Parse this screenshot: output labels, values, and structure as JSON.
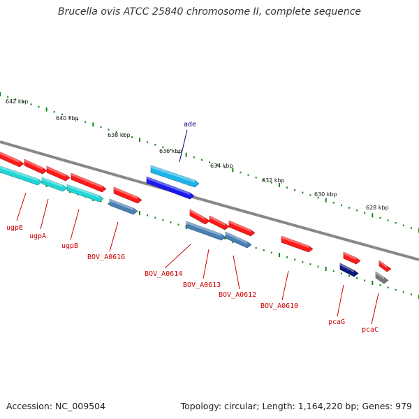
{
  "title": "Brucella ovis ATCC 25840 chromosome II, complete sequence",
  "footer": {
    "accession": "Accession: NC_009504",
    "topology": "Topology: circular; Length: 1,164,220 bp; Genes: 979"
  },
  "colors": {
    "backbone": "#888888",
    "tick": "#118811",
    "gene_red": "#ff1a1a",
    "gene_cyan": "#22d4d4",
    "gene_lightblue": "#1eb4e8",
    "gene_blue": "#1a1aee",
    "gene_steel": "#4a7fb5",
    "gene_navy": "#0a1a7a",
    "gene_gray": "#777777",
    "label_red": "#cc0000",
    "label_blue": "#000088"
  },
  "scale_ticks": [
    "642 kbp",
    "640 kbp",
    "638 kbp",
    "636 kbp",
    "634 kbp",
    "632 kbp",
    "630 kbp",
    "628 kbp"
  ],
  "gene_labels": [
    {
      "text": "ugpE",
      "color": "label_red"
    },
    {
      "text": "ugpA",
      "color": "label_red"
    },
    {
      "text": "ugpB",
      "color": "label_red"
    },
    {
      "text": "BOV_A0616",
      "color": "label_red"
    },
    {
      "text": "BOV_A0614",
      "color": "label_red"
    },
    {
      "text": "BOV_A0613",
      "color": "label_red"
    },
    {
      "text": "BOV_A0612",
      "color": "label_red"
    },
    {
      "text": "BOV_A0610",
      "color": "label_red"
    },
    {
      "text": "pcaG",
      "color": "label_red"
    },
    {
      "text": "pcaC",
      "color": "label_red"
    },
    {
      "text": "ade",
      "color": "label_blue"
    }
  ]
}
